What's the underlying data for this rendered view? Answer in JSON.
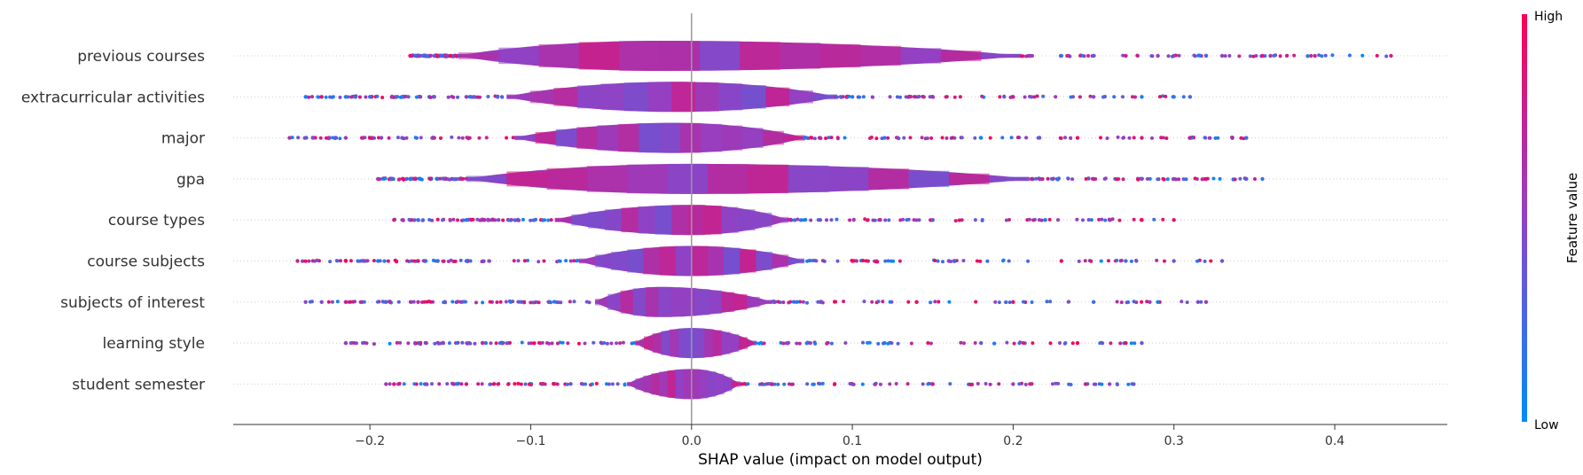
{
  "chart_data": {
    "type": "scatter",
    "subtype": "shap-violin-summary",
    "title": "",
    "xlabel": "SHAP value (impact on model output)",
    "xlim": [
      -0.285,
      0.47
    ],
    "x_ticks": [
      -0.2,
      -0.1,
      0.0,
      0.1,
      0.2,
      0.3,
      0.4
    ],
    "x_tick_labels": [
      "−0.2",
      "−0.1",
      "0.0",
      "0.1",
      "0.2",
      "0.3",
      "0.4"
    ],
    "features": [
      {
        "name": "previous courses",
        "min": -0.175,
        "max": 0.435,
        "bulk": [
          -0.145,
          0.205
        ],
        "peak": -0.02,
        "outliers": [
          -0.175,
          -0.16,
          -0.155,
          -0.15,
          0.21,
          0.23,
          0.25,
          0.27,
          0.29,
          0.3,
          0.32,
          0.33,
          0.355,
          0.36,
          0.435
        ]
      },
      {
        "name": "extracurricular activities",
        "min": -0.24,
        "max": 0.31,
        "bulk": [
          -0.115,
          0.09
        ],
        "peak": -0.01,
        "outliers": [
          -0.24,
          -0.23,
          -0.215,
          -0.2,
          -0.18,
          -0.16,
          -0.14,
          0.1,
          0.15,
          0.2,
          0.25,
          0.28,
          0.3,
          0.31
        ]
      },
      {
        "name": "major",
        "min": -0.25,
        "max": 0.345,
        "bulk": [
          -0.11,
          0.07
        ],
        "peak": -0.01,
        "outliers": [
          -0.25,
          -0.215,
          -0.205,
          -0.18,
          -0.16,
          0.08,
          0.12,
          0.18,
          0.24,
          0.28,
          0.31,
          0.345
        ]
      },
      {
        "name": "gpa",
        "min": -0.195,
        "max": 0.355,
        "bulk": [
          -0.14,
          0.21
        ],
        "peak": 0.0,
        "outliers": [
          -0.195,
          -0.175,
          0.25,
          0.28,
          0.3,
          0.32,
          0.345,
          0.355
        ]
      },
      {
        "name": "course types",
        "min": -0.185,
        "max": 0.3,
        "bulk": [
          -0.085,
          0.06
        ],
        "peak": 0.0,
        "outliers": [
          -0.185,
          -0.17,
          -0.14,
          -0.12,
          0.08,
          0.15,
          0.22,
          0.26,
          0.28,
          0.3
        ]
      },
      {
        "name": "course subjects",
        "min": -0.245,
        "max": 0.33,
        "bulk": [
          -0.07,
          0.07
        ],
        "peak": 0.0,
        "outliers": [
          -0.245,
          -0.215,
          -0.195,
          -0.17,
          -0.14,
          0.1,
          0.16,
          0.23,
          0.27,
          0.3,
          0.33
        ]
      },
      {
        "name": "subjects of interest",
        "min": -0.24,
        "max": 0.32,
        "bulk": [
          -0.06,
          0.05
        ],
        "peak": -0.02,
        "outliers": [
          -0.24,
          -0.23,
          -0.215,
          -0.19,
          -0.17,
          0.08,
          0.14,
          0.2,
          0.25,
          0.285,
          0.29,
          0.315,
          0.32
        ]
      },
      {
        "name": "learning style",
        "min": -0.215,
        "max": 0.28,
        "bulk": [
          -0.035,
          0.04
        ],
        "peak": 0.0,
        "outliers": [
          -0.215,
          -0.165,
          -0.13,
          0.06,
          0.12,
          0.18,
          0.24,
          0.27,
          0.28
        ]
      },
      {
        "name": "student semester",
        "min": -0.19,
        "max": 0.275,
        "bulk": [
          -0.04,
          0.03
        ],
        "peak": 0.0,
        "outliers": [
          -0.19,
          -0.185,
          -0.165,
          -0.14,
          0.05,
          0.1,
          0.15,
          0.2,
          0.245,
          0.26,
          0.275
        ]
      }
    ],
    "colorbar": {
      "title": "Feature value",
      "high_label": "High",
      "low_label": "Low",
      "low_color": "#008bfb",
      "high_color": "#ff0052"
    }
  }
}
